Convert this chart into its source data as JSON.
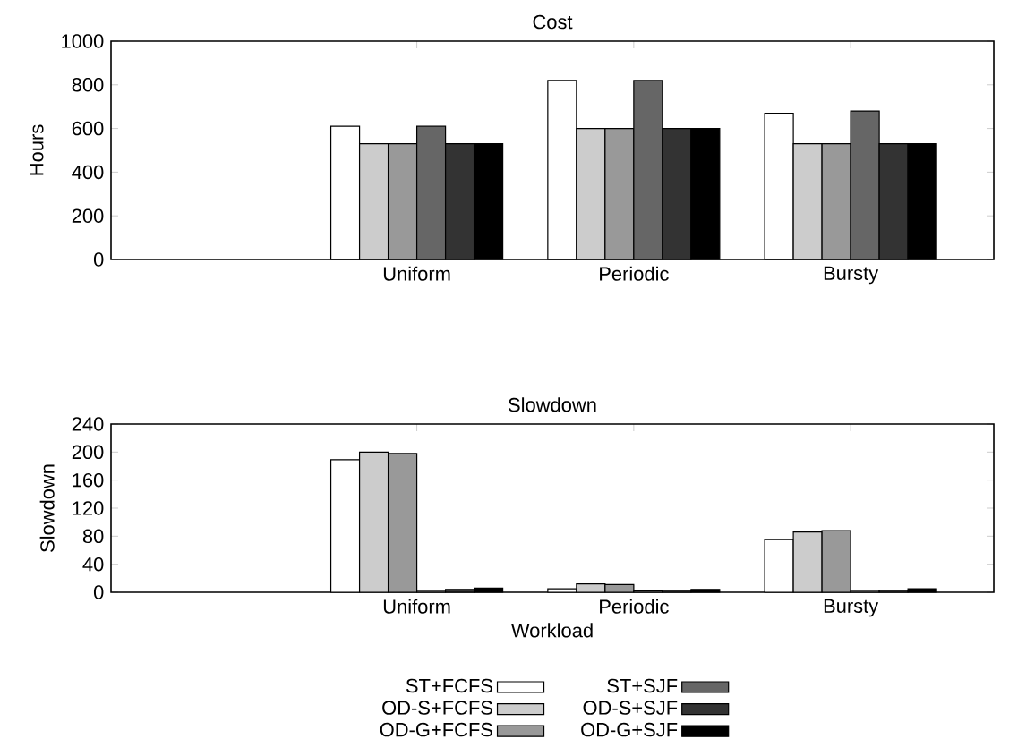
{
  "chart_data": [
    {
      "type": "bar",
      "title": "Cost",
      "ylabel": "Hours",
      "categories": [
        "Uniform",
        "Periodic",
        "Bursty"
      ],
      "ylim": [
        0,
        1000
      ],
      "yticks": [
        0,
        200,
        400,
        600,
        800,
        1000
      ],
      "series": [
        {
          "color": "#ffffff",
          "values": [
            610,
            820,
            670
          ]
        },
        {
          "color": "#cccccc",
          "values": [
            530,
            600,
            530
          ]
        },
        {
          "color": "#999999",
          "values": [
            530,
            600,
            530
          ]
        },
        {
          "color": "#666666",
          "values": [
            610,
            820,
            680
          ]
        },
        {
          "color": "#333333",
          "values": [
            530,
            600,
            530
          ]
        },
        {
          "color": "#000000",
          "values": [
            530,
            600,
            530
          ]
        }
      ]
    },
    {
      "type": "bar",
      "title": "Slowdown",
      "ylabel": "Slowdown",
      "xlabel": "Workload",
      "categories": [
        "Uniform",
        "Periodic",
        "Bursty"
      ],
      "ylim": [
        0,
        240
      ],
      "yticks": [
        0,
        40,
        80,
        120,
        160,
        200,
        240
      ],
      "legend": "bottom",
      "series": [
        {
          "name": "ST+FCFS",
          "color": "#ffffff",
          "values": [
            189,
            5,
            75
          ]
        },
        {
          "name": "OD-S+FCFS",
          "color": "#cccccc",
          "values": [
            200,
            12,
            86
          ]
        },
        {
          "name": "OD-G+FCFS",
          "color": "#999999",
          "values": [
            198,
            11,
            88
          ]
        },
        {
          "name": "ST+SJF",
          "color": "#666666",
          "values": [
            3,
            2,
            3
          ]
        },
        {
          "name": "OD-S+SJF",
          "color": "#333333",
          "values": [
            4,
            3,
            3
          ]
        },
        {
          "name": "OD-G+SJF",
          "color": "#000000",
          "values": [
            6,
            4,
            5
          ]
        }
      ]
    }
  ]
}
